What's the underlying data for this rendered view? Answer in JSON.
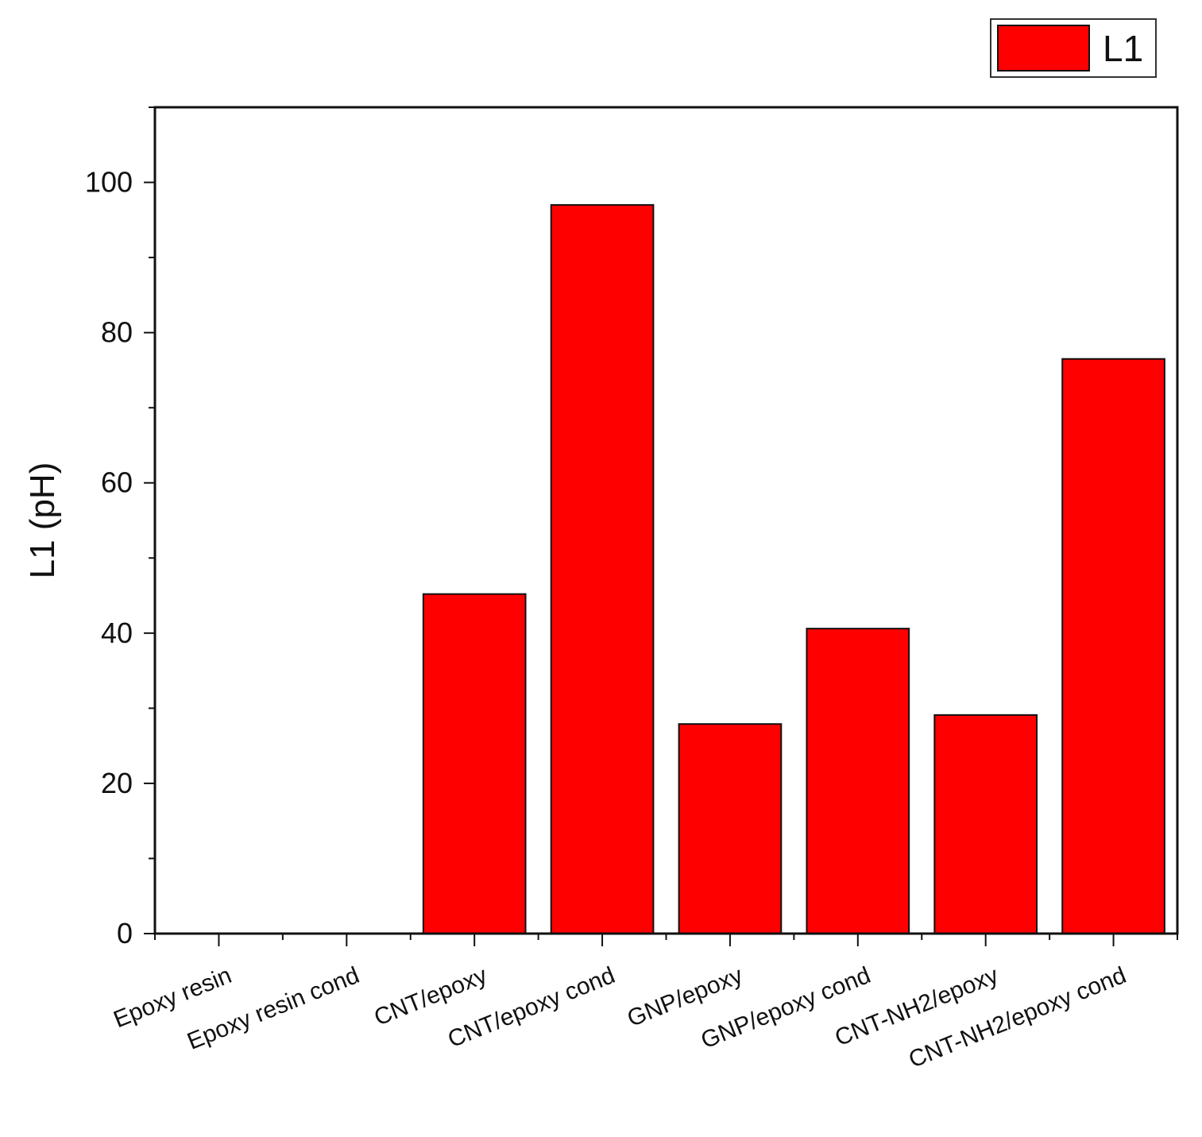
{
  "chart_data": {
    "type": "bar",
    "title": "",
    "xlabel": "",
    "ylabel": "L1 (pH)",
    "ylim": [
      0,
      110
    ],
    "yticks": [
      0,
      20,
      40,
      60,
      80,
      100
    ],
    "categories": [
      "Epoxy resin",
      "Epoxy resin cond",
      "CNT/epoxy",
      "CNT/epoxy cond",
      "GNP/epoxy",
      "GNP/epoxy cond",
      "CNT-NH2/epoxy",
      "CNT-NH2/epoxy cond"
    ],
    "series": [
      {
        "name": "L1",
        "color": "#ff0000",
        "values": [
          0,
          0,
          45.2,
          97.0,
          27.9,
          40.6,
          29.1,
          76.5
        ]
      }
    ],
    "legend": {
      "position": "top-right",
      "entries": [
        "L1"
      ]
    },
    "grid": false
  }
}
